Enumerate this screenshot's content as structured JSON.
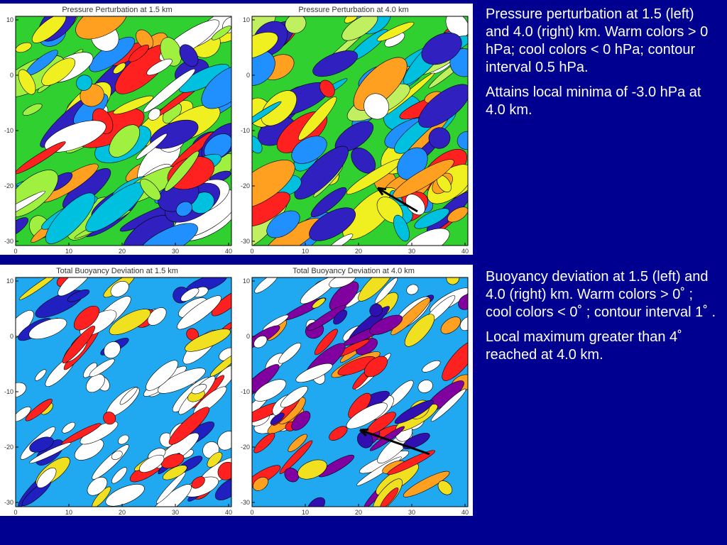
{
  "panels": [
    {
      "title": "Pressure Perturbation at 1.5 km",
      "xticks": [
        0,
        10,
        20,
        30,
        40
      ],
      "yticks": [
        10,
        0,
        -10,
        -20,
        -30
      ]
    },
    {
      "title": "Pressure Perturbation at 4.0 km",
      "xticks": [
        0,
        10,
        20,
        30,
        40
      ],
      "yticks": [
        10,
        0,
        -10,
        -20,
        -30
      ]
    },
    {
      "title": "Total Buoyancy Deviation at 1.5 km",
      "xticks": [
        0,
        10,
        20,
        30,
        40
      ],
      "yticks": [
        10,
        0,
        -10,
        -20,
        -30
      ]
    },
    {
      "title": "Total Buoyancy Deviation at 4.0 km",
      "xticks": [
        0,
        10,
        20,
        30,
        40
      ],
      "yticks": [
        10,
        0,
        -10,
        -20,
        -30
      ]
    }
  ],
  "notes": [
    {
      "paragraphs": [
        "Pressure perturbation at 1.5 (left) and 4.0 (right) km. Warm colors > 0 hPa; cool colors < 0 hPa; contour interval 0.5 hPa.",
        "Attains local minima of -3.0 hPa at 4.0 km."
      ]
    },
    {
      "paragraphs": [
        "Buoyancy deviation at 1.5 (left) and 4.0 (right) km. Warm colors > 0˚ ; cool colors < 0˚ ; contour interval 1˚ .",
        "Local maximum greater than 4˚  reached at 4.0 km."
      ]
    }
  ]
}
